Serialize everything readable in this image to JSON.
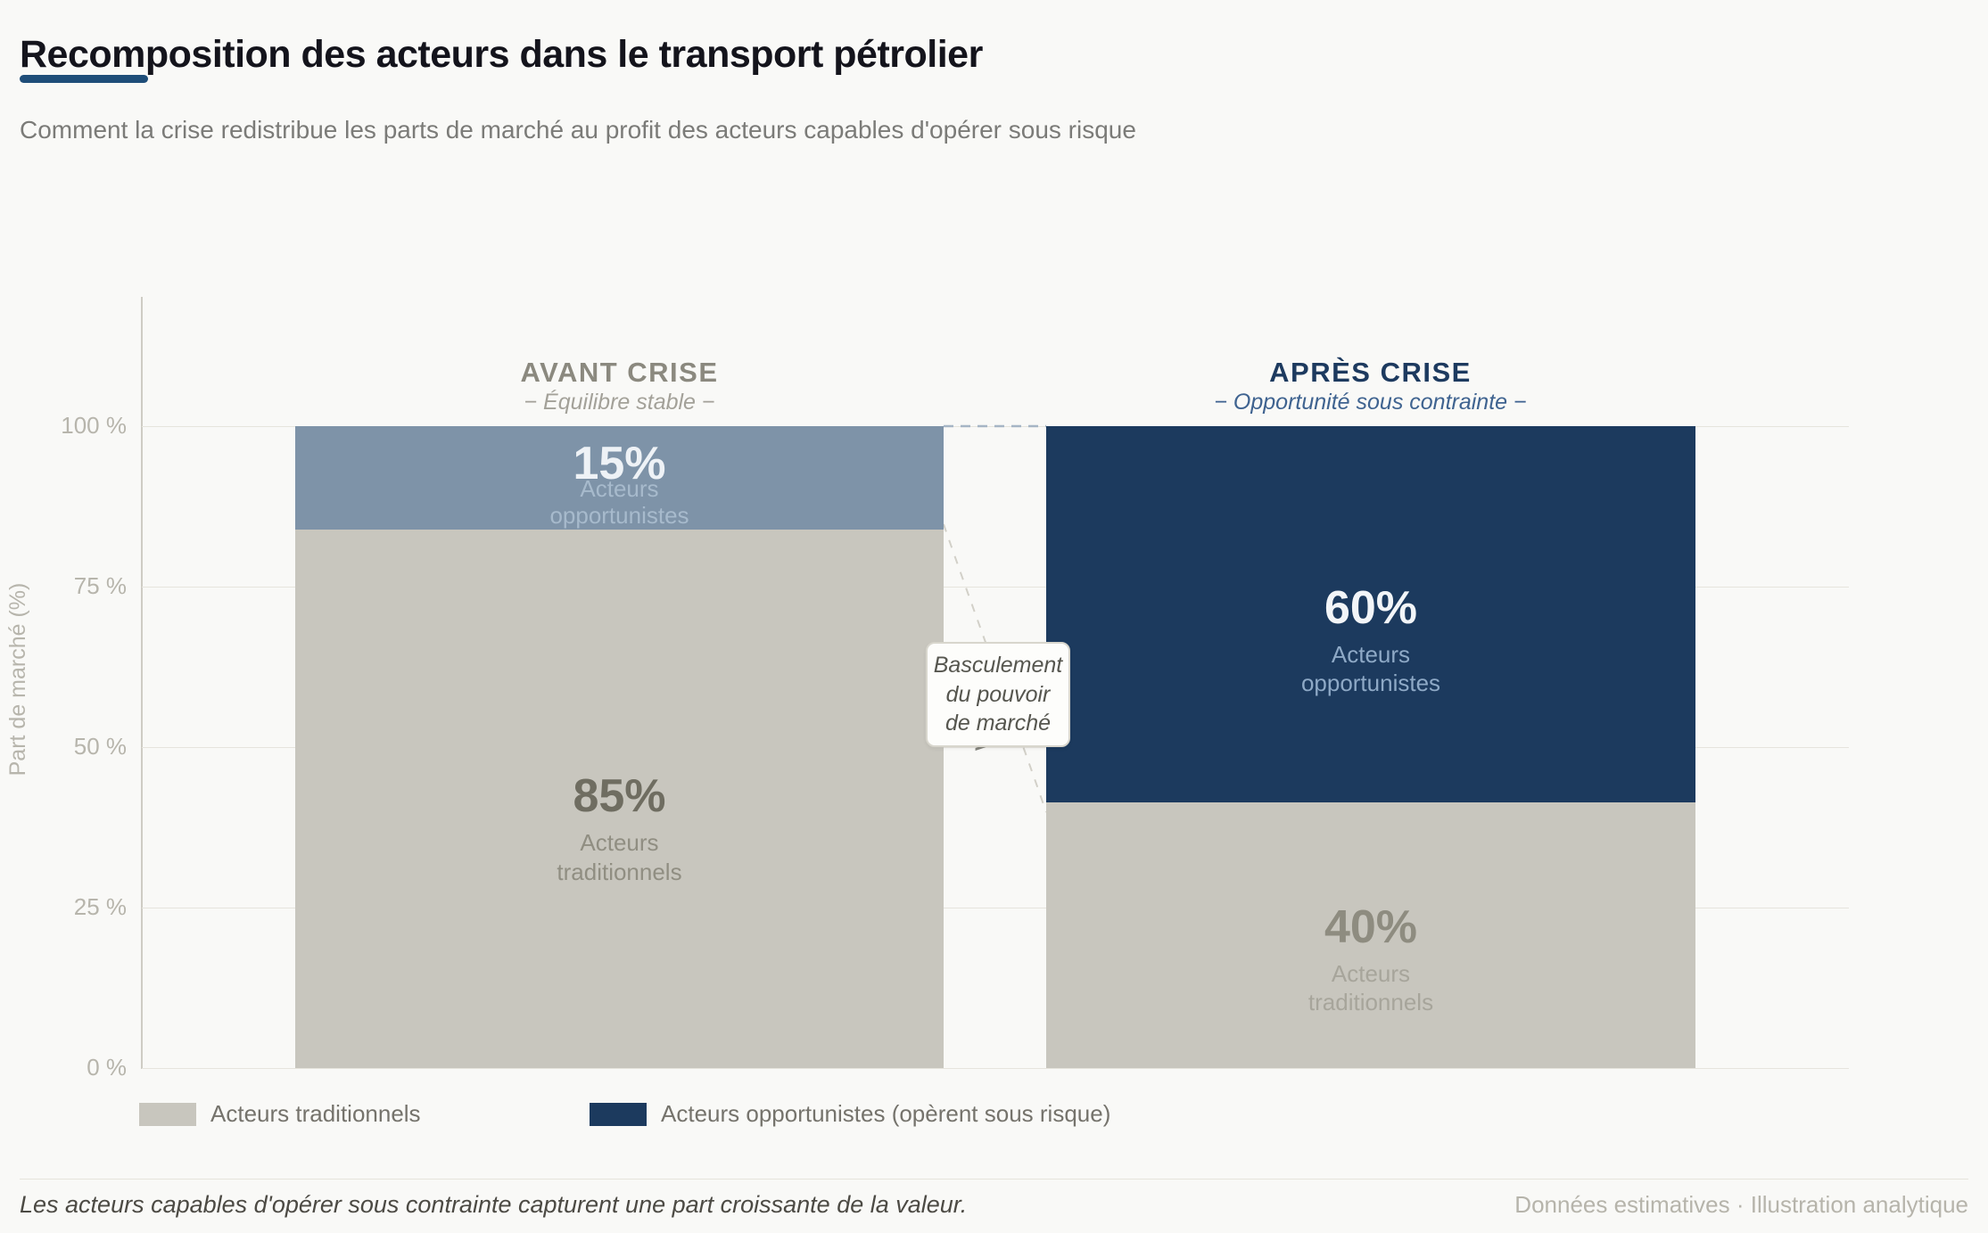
{
  "header": {
    "title": "Recomposition des acteurs dans le transport pétrolier",
    "subtitle": "Comment la crise redistribue les parts de marché au profit des acteurs capables d'opérer sous risque",
    "accent_color": "#1f4e79"
  },
  "chart_data": {
    "type": "bar",
    "stacked": true,
    "title": "Recomposition des acteurs dans le transport pétrolier",
    "ylabel": "Part de marché (%)",
    "ylim": [
      0,
      100
    ],
    "yticks": [
      "100 %",
      "75 %",
      "50 %",
      "25 %",
      "0 %"
    ],
    "ytick_values": [
      100,
      75,
      50,
      25,
      0
    ],
    "grid": true,
    "legend_position": "bottom",
    "categories": [
      "AVANT CRISE",
      "APRÈS CRISE"
    ],
    "category_subtitles": [
      "− Équilibre stable −",
      "− Opportunité sous contrainte −"
    ],
    "series": [
      {
        "name": "Acteurs traditionnels",
        "color": "#c8c6be",
        "values": [
          85,
          40
        ]
      },
      {
        "name": "Acteurs opportunistes (opèrent sous risque)",
        "color": "#1c3a5e",
        "values": [
          15,
          60
        ]
      }
    ]
  },
  "bars": [
    {
      "header": "AVANT CRISE",
      "subheader": "− Équilibre stable −",
      "top_segment": {
        "pct": 15,
        "value_label": "15%",
        "color": "#7e93a8",
        "name_line1": "Acteurs",
        "name_line2": "opportunistes"
      },
      "bottom_segment": {
        "pct": 85,
        "value_label": "85%",
        "color": "#c8c6be",
        "name_line1": "Acteurs",
        "name_line2": "traditionnels"
      }
    },
    {
      "header": "APRÈS CRISE",
      "subheader": "− Opportunité sous contrainte −",
      "top_segment": {
        "pct": 60,
        "value_label": "60%",
        "color": "#1c3a5e",
        "name_line1": "Acteurs",
        "name_line2": "opportunistes"
      },
      "bottom_segment": {
        "pct": 40,
        "value_label": "40%",
        "color": "#c8c6be",
        "name_line1": "Acteurs",
        "name_line2": "traditionnels"
      }
    }
  ],
  "annotation": {
    "line1": "Basculement",
    "line2": "du pouvoir",
    "line3": "de marché",
    "arrow_glyph": ">"
  },
  "legend": {
    "items": [
      {
        "label": "Acteurs traditionnels",
        "color": "#c8c6be"
      },
      {
        "label": "Acteurs opportunistes (opèrent sous risque)",
        "color": "#1c3a5e"
      }
    ]
  },
  "footer": {
    "note": "Les acteurs capables d'opérer sous contrainte capturent une part croissante de la valeur.",
    "source": "Données estimatives · Illustration analytique"
  }
}
